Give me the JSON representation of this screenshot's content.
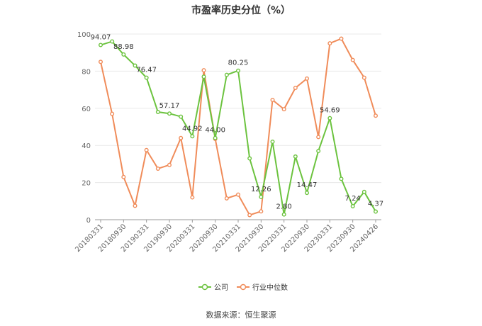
{
  "page": {
    "title": "市盈率历史分位（%）",
    "source": "数据来源：恒生聚源"
  },
  "chart_data": {
    "type": "line",
    "title": "市盈率历史分位（%）",
    "ylim": [
      0,
      100
    ],
    "yticks": [
      0,
      20,
      40,
      60,
      80,
      100
    ],
    "grid": true,
    "legend_position": "bottom-center",
    "xtick_labels": [
      "20180331",
      "20180930",
      "20190331",
      "20190930",
      "20200331",
      "20200930",
      "20210331",
      "20210930",
      "20220331",
      "20220930",
      "20230331",
      "20230930",
      "20240426"
    ],
    "series": [
      {
        "name": "公司",
        "color": "#6cc33f",
        "values": [
          94.07,
          96.0,
          88.98,
          83.0,
          76.47,
          58.0,
          57.17,
          55.5,
          44.92,
          77.0,
          44.0,
          78.0,
          80.25,
          33.0,
          12.26,
          42.0,
          2.8,
          34.0,
          14.47,
          37.0,
          54.69,
          22.0,
          7.24,
          15.0,
          4.37
        ],
        "labels": {
          "0": "94.07",
          "2": "88.98",
          "4": "76.47",
          "6": "57.17",
          "8": "44.92",
          "10": "44.00",
          "12": "80.25",
          "14": "12.26",
          "16": "2.80",
          "18": "14.47",
          "20": "54.69",
          "22": "7.24",
          "24": "4.37"
        }
      },
      {
        "name": "行业中位数",
        "color": "#f08c5a",
        "values": [
          85.0,
          57.0,
          23.0,
          7.5,
          37.5,
          27.5,
          29.5,
          44.0,
          12.0,
          80.5,
          43.5,
          11.5,
          13.5,
          2.5,
          4.5,
          64.5,
          59.5,
          71.0,
          76.0,
          44.5,
          95.0,
          97.5,
          86.0,
          76.5,
          56.0
        ]
      }
    ]
  }
}
